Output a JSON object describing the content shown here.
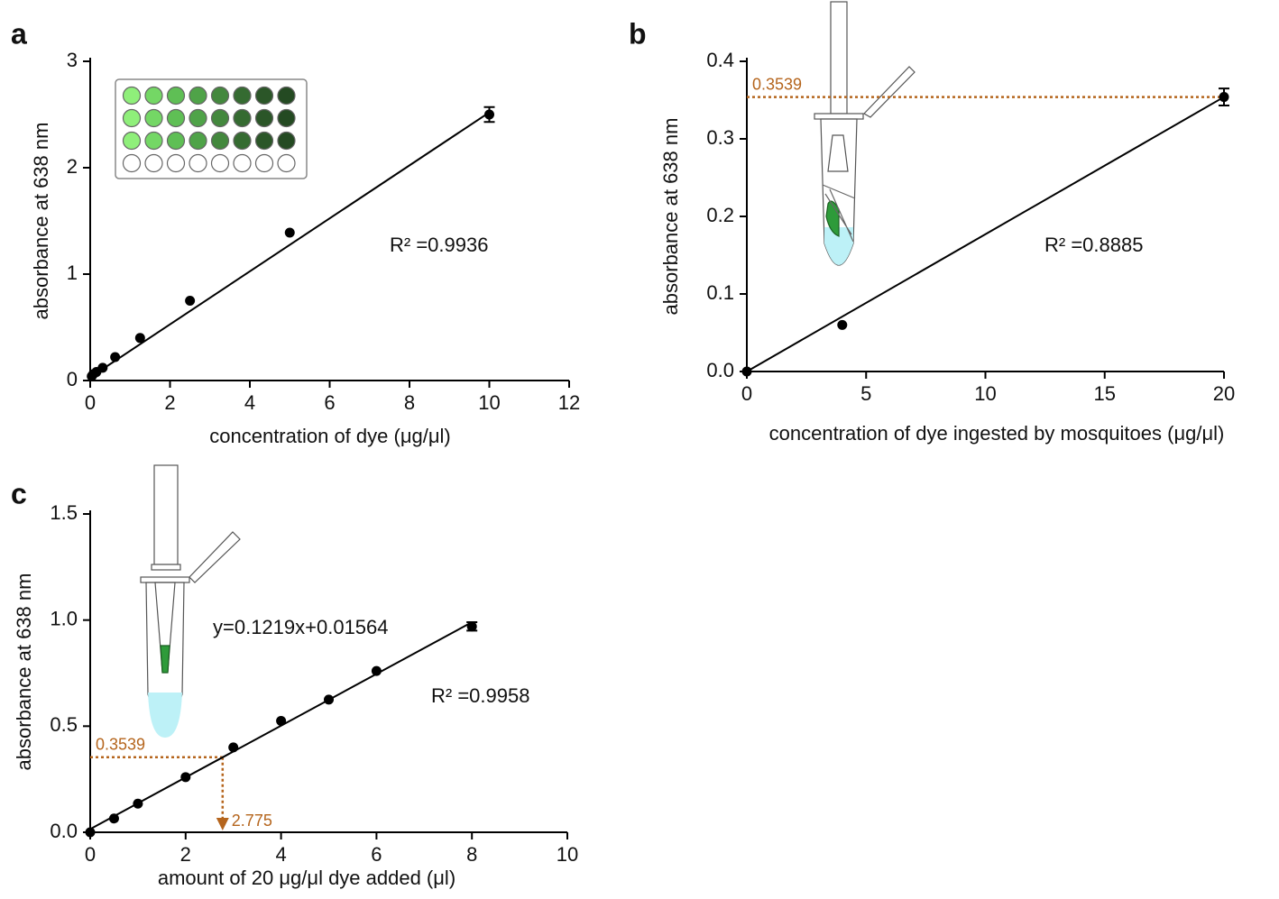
{
  "chart_data": [
    {
      "type": "scatter",
      "panel_label": "a",
      "x_label": "concentration of dye (μg/μl)",
      "y_label": "absorbance at 638 nm",
      "xlim": [
        0,
        12
      ],
      "ylim": [
        0,
        3
      ],
      "xticks": [
        0,
        2,
        4,
        6,
        8,
        10,
        12
      ],
      "yticks": [
        0,
        1,
        2,
        3
      ],
      "series": [
        {
          "color": "#000000",
          "x": [
            0.039,
            0.078,
            0.156,
            0.3125,
            0.625,
            1.25,
            2.5,
            5,
            10
          ],
          "y": [
            0.04,
            0.06,
            0.08,
            0.12,
            0.22,
            0.4,
            0.75,
            1.39,
            2.5
          ],
          "errors": [
            null,
            null,
            null,
            null,
            null,
            null,
            null,
            null,
            0.07
          ]
        }
      ],
      "fit": {
        "x": [
          0,
          10
        ],
        "y": [
          0.03,
          2.52
        ]
      },
      "r2": "R² =0.9936"
    },
    {
      "type": "scatter",
      "panel_label": "b",
      "x_label": "concentration of dye ingested by mosquitoes (μg/μl)",
      "y_label": "absorbance at 638 nm",
      "xlim": [
        0,
        20
      ],
      "ylim": [
        0,
        0.4
      ],
      "xticks": [
        0,
        5,
        10,
        15,
        20
      ],
      "yticks": [
        {
          "value": 0,
          "label": "0.0"
        },
        0.1,
        0.2,
        0.3,
        0.4
      ],
      "series": [
        {
          "color": "#000000",
          "x": [
            0,
            4,
            20
          ],
          "y": [
            0,
            0.06,
            0.354
          ],
          "errors": [
            null,
            null,
            0.011
          ]
        }
      ],
      "fit": {
        "x": [
          0,
          20
        ],
        "y": [
          0,
          0.354
        ]
      },
      "ref_y": 0.3539,
      "ref_color": "#b5651d",
      "r2": "R² =0.8885"
    },
    {
      "type": "scatter",
      "panel_label": "c",
      "x_label": "amount of 20 μg/μl dye added (μl)",
      "y_label": "absorbance at 638 nm",
      "xlim": [
        0,
        10
      ],
      "ylim": [
        0,
        1.5
      ],
      "xticks": [
        0,
        2,
        4,
        6,
        8,
        10
      ],
      "yticks": [
        {
          "value": 0,
          "label": "0.0"
        },
        0.5,
        {
          "value": 1,
          "label": "1.0"
        },
        1.5
      ],
      "series": [
        {
          "color": "#000000",
          "x": [
            0,
            0.5,
            1,
            2,
            3,
            4,
            5,
            6,
            8
          ],
          "y": [
            0.0,
            0.065,
            0.135,
            0.26,
            0.4,
            0.525,
            0.625,
            0.76,
            0.97
          ],
          "errors": [
            null,
            null,
            null,
            null,
            null,
            null,
            null,
            null,
            0.02
          ]
        }
      ],
      "fit": {
        "x": [
          0,
          8
        ],
        "y": [
          0.015,
          0.99
        ]
      },
      "ref_y": 0.3539,
      "ref_x": 2.775,
      "ref_color": "#b5651d",
      "equation": "y=0.1219x+0.01564",
      "r2": "R² =0.9958"
    }
  ]
}
